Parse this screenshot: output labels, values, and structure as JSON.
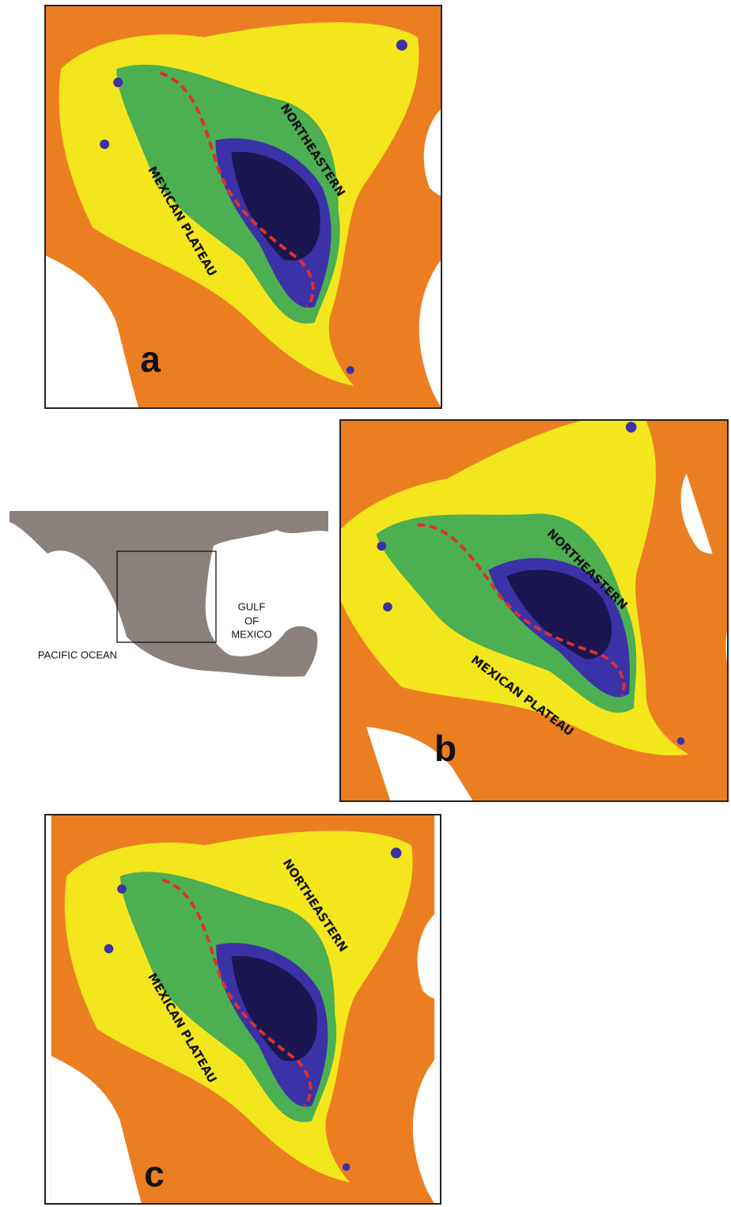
{
  "panels": [
    {
      "letter": "a",
      "region_labels": [
        "NORTHEASTERN",
        "MEXICAN PLATEAU"
      ]
    },
    {
      "letter": "b",
      "region_labels": [
        "NORTHEASTERN",
        "MEXICAN PLATEAU"
      ]
    },
    {
      "letter": "c",
      "region_labels": [
        "NORTHEASTERN",
        "MEXICAN PLATEAU"
      ]
    }
  ],
  "inset": {
    "gulf_label": [
      "GULF",
      "OF",
      "MEXICO"
    ],
    "ocean_label": "PACIFIC OCEAN"
  }
}
